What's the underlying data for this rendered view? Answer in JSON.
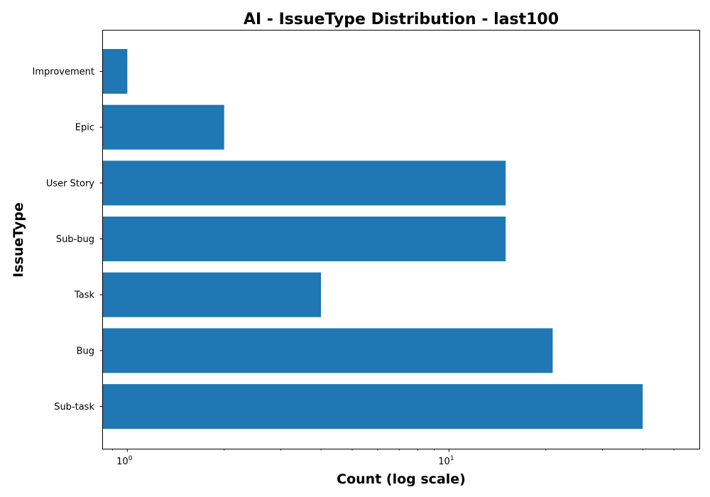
{
  "chart_data": {
    "type": "bar",
    "orientation": "horizontal",
    "title": "AI - IssueType Distribution - last100",
    "xlabel": "Count (log scale)",
    "ylabel": "IssueType",
    "x_scale": "log",
    "xlim": [
      0.84,
      60
    ],
    "categories": [
      "Sub-task",
      "Bug",
      "Task",
      "Sub-bug",
      "User Story",
      "Epic",
      "Improvement"
    ],
    "values": [
      40,
      21,
      4,
      15,
      15,
      2,
      1
    ],
    "x_ticks": [
      {
        "base": "10",
        "exp": "0",
        "value": 1
      },
      {
        "base": "10",
        "exp": "1",
        "value": 10
      }
    ],
    "bar_color": "#1f77b4",
    "grid": false,
    "legend": "none"
  }
}
